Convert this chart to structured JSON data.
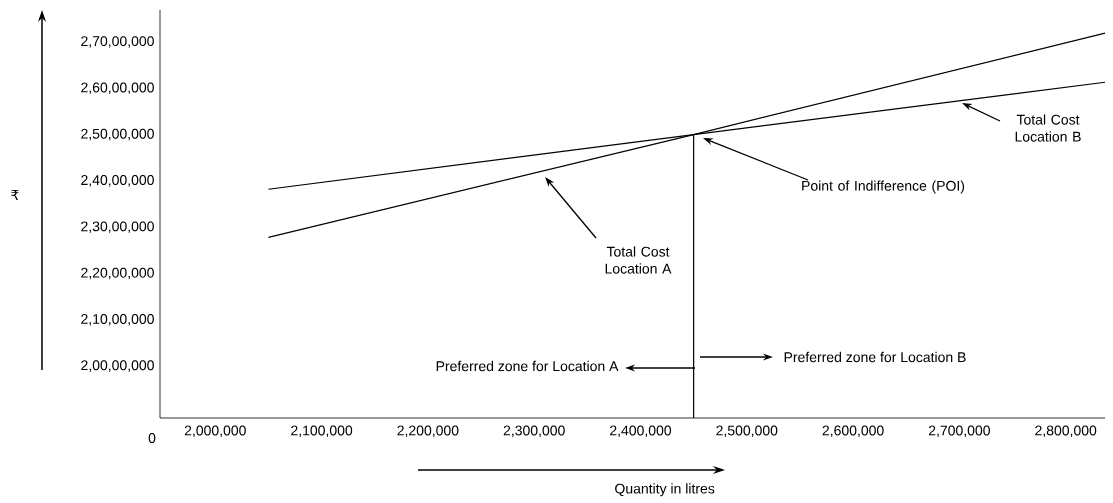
{
  "chart_data": {
    "type": "line",
    "xlabel": "Quantity in litres",
    "xlim": [
      1948000,
      2837000
    ],
    "ylim": [
      18880000,
      27690000
    ],
    "xticks": [
      {
        "value": 2000000,
        "label": "2,000,000"
      },
      {
        "value": 2100000,
        "label": "2,100,000"
      },
      {
        "value": 2200000,
        "label": "2,200,000"
      },
      {
        "value": 2300000,
        "label": "2,300,000"
      },
      {
        "value": 2400000,
        "label": "2,400,000"
      },
      {
        "value": 2500000,
        "label": "2,500,000"
      },
      {
        "value": 2600000,
        "label": "2,600,000"
      },
      {
        "value": 2700000,
        "label": "2,700,000"
      },
      {
        "value": 2800000,
        "label": "2,800,000"
      }
    ],
    "yticks": [
      {
        "value": 20000000,
        "label": "2,00,00,000"
      },
      {
        "value": 21000000,
        "label": "2,10,00,000"
      },
      {
        "value": 22000000,
        "label": "2,20,00,000"
      },
      {
        "value": 23000000,
        "label": "2,30,00,000"
      },
      {
        "value": 24000000,
        "label": "2,40,00,000"
      },
      {
        "value": 25000000,
        "label": "2,50,00,000"
      },
      {
        "value": 26000000,
        "label": "2,60,00,000"
      },
      {
        "value": 27000000,
        "label": "2,70,00,000"
      }
    ],
    "series": [
      {
        "color": "#000000",
        "x": [
          2050000,
          2450000,
          2837000
        ],
        "values": [
          22780000,
          25000000,
          27190000
        ]
      },
      {
        "color": "#000000",
        "x": [
          2050000,
          2450000,
          2837000
        ],
        "values": [
          23820000,
          25000000,
          26130000
        ]
      },
      {
        "color": "#000000",
        "x": [
          2450000,
          2450000
        ],
        "values": [
          18880000,
          25000000
        ]
      }
    ],
    "annotations": [
      "Total Cost Location A",
      "Point of Indifference (POI)",
      "Total Cost Location B",
      "Preferred zone for Location A",
      "Preferred zone for Location B",
      "0",
      "₹"
    ],
    "grid": false
  }
}
